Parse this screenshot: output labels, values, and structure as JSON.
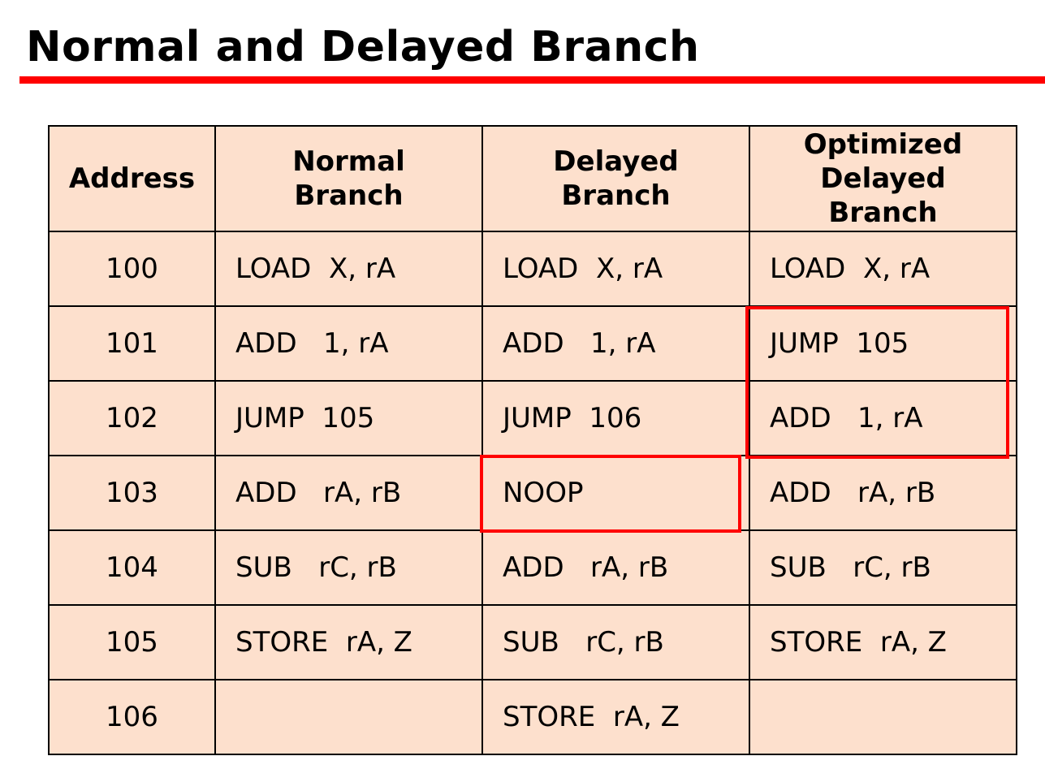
{
  "title": "Normal and Delayed Branch",
  "colors": {
    "accent": "#ff0000",
    "cell_background": "#fde0cd"
  },
  "table": {
    "headers": [
      [
        "Address"
      ],
      [
        "Normal",
        "Branch"
      ],
      [
        "Delayed",
        "Branch"
      ],
      [
        "Optimized",
        "Delayed",
        "Branch"
      ]
    ],
    "rows": [
      [
        "100",
        "LOAD  X, rA",
        "LOAD  X, rA",
        "LOAD  X, rA"
      ],
      [
        "101",
        "ADD   1, rA",
        "ADD   1, rA",
        "JUMP  105"
      ],
      [
        "102",
        "JUMP  105",
        "JUMP  106",
        "ADD   1, rA"
      ],
      [
        "103",
        "ADD   rA, rB",
        "NOOP",
        "ADD   rA, rB"
      ],
      [
        "104",
        "SUB   rC, rB",
        "ADD   rA, rB",
        "SUB   rC, rB"
      ],
      [
        "105",
        "STORE  rA, Z",
        "SUB   rC, rB",
        "STORE  rA, Z"
      ],
      [
        "106",
        "",
        "STORE  rA, Z",
        ""
      ]
    ]
  }
}
